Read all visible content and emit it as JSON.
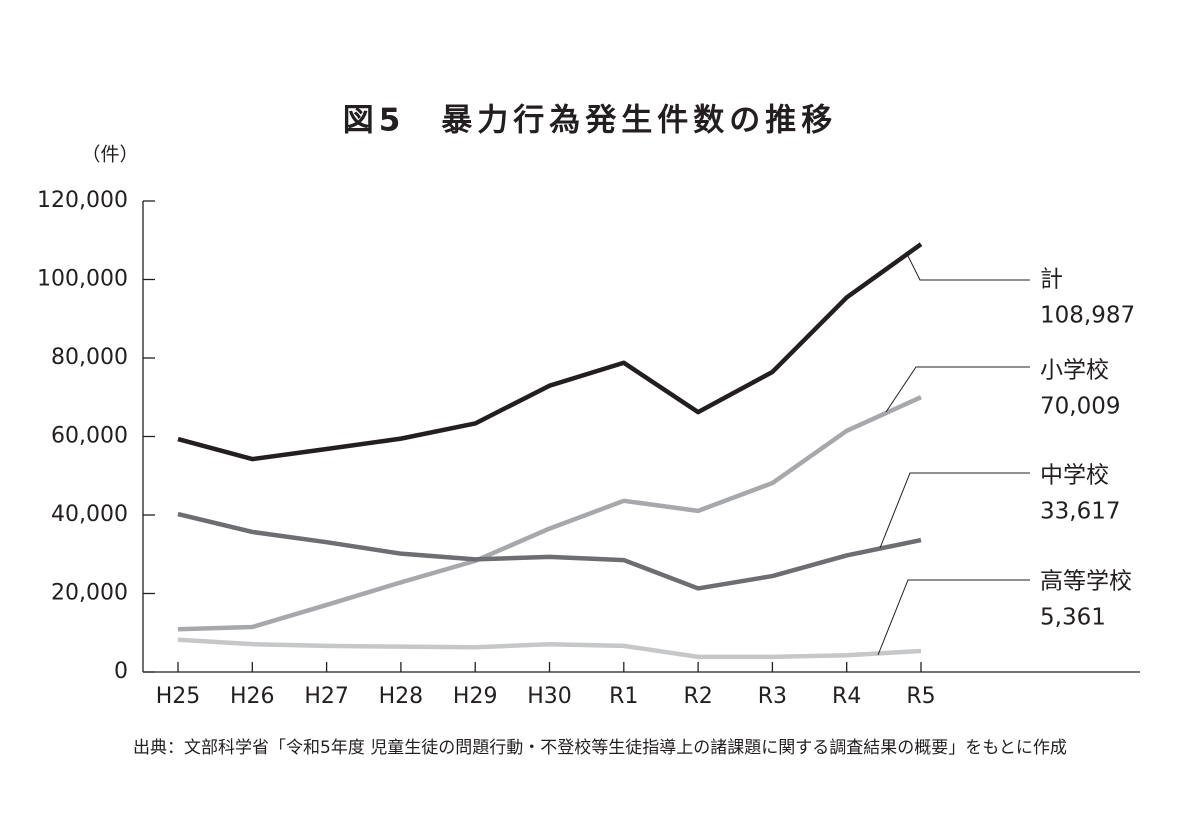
{
  "chart_data": {
    "type": "line",
    "title": "図5　暴力行為発生件数の推移",
    "y_axis_label": "（件）",
    "source": "出典：文部科学省「令和5年度 児童生徒の問題行動・不登校等生徒指導上の諸課題に関する調査結果の概要」をもとに作成",
    "categories": [
      "H25",
      "H26",
      "H27",
      "H28",
      "H29",
      "H30",
      "R1",
      "R2",
      "R3",
      "R4",
      "R5"
    ],
    "ylim": [
      0,
      120000
    ],
    "yticks": [
      0,
      {
        "value": 20000,
        "label": "20,000"
      },
      {
        "value": 40000,
        "label": "40,000"
      },
      {
        "value": 60000,
        "label": "60,000"
      },
      {
        "value": 80000,
        "label": "80,000"
      },
      {
        "value": 100000,
        "label": "100,000"
      },
      {
        "value": 120000,
        "label": "120,000"
      }
    ],
    "series": [
      {
        "name": "計",
        "color": "#231f20",
        "values": [
          59345,
          54242,
          56806,
          59457,
          63325,
          72940,
          78787,
          66201,
          76441,
          95426,
          108987
        ],
        "value_labels": [
          null,
          null,
          null,
          null,
          null,
          null,
          null,
          null,
          null,
          null,
          "108,987"
        ]
      },
      {
        "name": "小学校",
        "color": "#a7a8ab",
        "values": [
          10896,
          11468,
          17078,
          22841,
          28315,
          36536,
          43614,
          41056,
          48138,
          61455,
          70009
        ],
        "value_labels": [
          null,
          null,
          null,
          null,
          null,
          null,
          null,
          null,
          null,
          null,
          "70,009"
        ]
      },
      {
        "name": "中学校",
        "color": "#6d6e71",
        "values": [
          40246,
          35683,
          33073,
          30148,
          28702,
          29320,
          28518,
          21293,
          24450,
          29699,
          33617
        ],
        "value_labels": [
          null,
          null,
          null,
          null,
          null,
          null,
          null,
          null,
          null,
          null,
          "33,617"
        ]
      },
      {
        "name": "高等学校",
        "color": "#c6c7c9",
        "values": [
          8203,
          7091,
          6655,
          6455,
          6308,
          7084,
          6655,
          3852,
          3853,
          4272,
          5361
        ],
        "value_labels": [
          null,
          null,
          null,
          null,
          null,
          null,
          null,
          null,
          null,
          null,
          "5,361"
        ]
      }
    ]
  }
}
